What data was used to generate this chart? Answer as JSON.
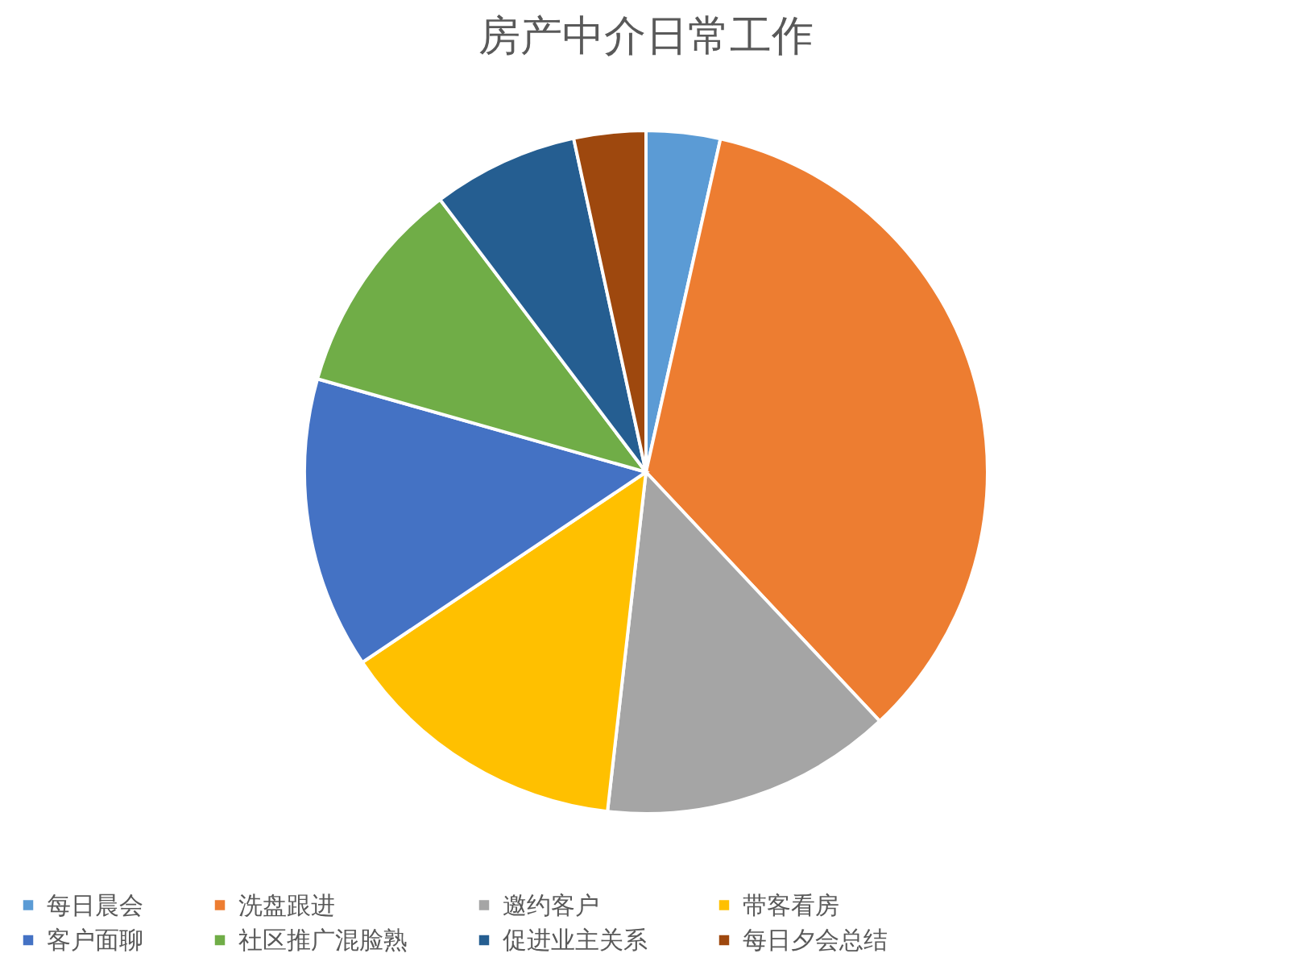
{
  "chart_data": {
    "type": "pie",
    "title": "房产中介日常工作",
    "categories": [
      "每日晨会",
      "洗盘跟进",
      "邀约客户",
      "带客看房",
      "客户面聊",
      "社区推广混脸熟",
      "促进业主关系",
      "每日夕会总结"
    ],
    "values": [
      3.5,
      34.5,
      13.8,
      13.8,
      13.8,
      10.3,
      6.9,
      3.4
    ],
    "colors": [
      "#5b9bd5",
      "#ed7d31",
      "#a5a5a5",
      "#ffc000",
      "#4472c4",
      "#70ad47",
      "#255e91",
      "#9e480e"
    ],
    "legend": "bottom"
  }
}
